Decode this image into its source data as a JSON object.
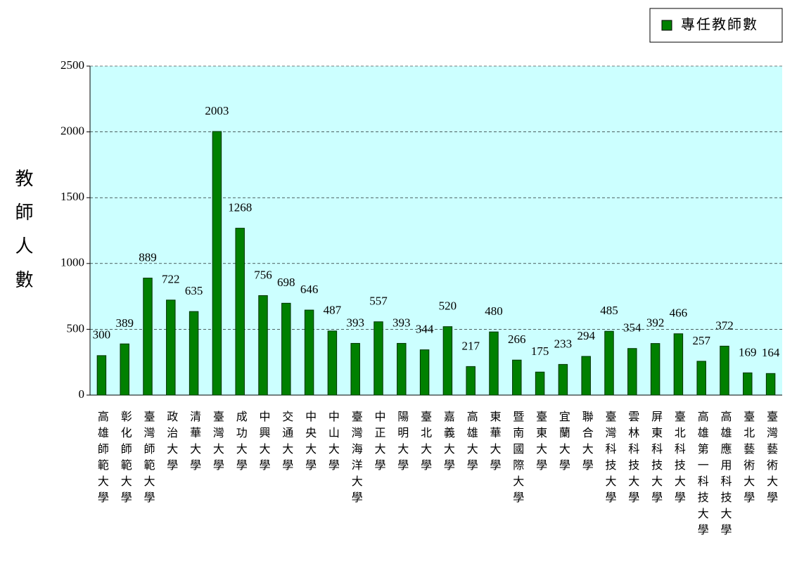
{
  "chart_data": {
    "type": "bar",
    "y_label": "教師人數",
    "categories": [
      "高雄師範大學",
      "彰化師範大學",
      "臺灣師範大學",
      "政治大學",
      "清華大學",
      "臺灣大學",
      "成功大學",
      "中興大學",
      "交通大學",
      "中央大學",
      "中山大學",
      "臺灣海洋大學",
      "中正大學",
      "陽明大學",
      "臺北大學",
      "嘉義大學",
      "高雄大學",
      "東華大學",
      "暨南國際大學",
      "臺東大學",
      "宜蘭大學",
      "聯合大學",
      "臺灣科技大學",
      "雲林科技大學",
      "屏東科技大學",
      "臺北科技大學",
      "高雄第一科技大學",
      "高雄應用科技大學",
      "臺北藝術大學",
      "臺灣藝術大學"
    ],
    "series": [
      {
        "name": "專任教師數",
        "color": "#008000",
        "values": [
          300,
          389,
          889,
          722,
          635,
          2003,
          1268,
          756,
          698,
          646,
          487,
          393,
          557,
          393,
          344,
          520,
          217,
          480,
          266,
          175,
          233,
          294,
          485,
          354,
          392,
          466,
          257,
          372,
          169,
          164
        ]
      }
    ],
    "ylim": [
      0,
      2500
    ],
    "yticks": [
      0,
      500,
      1000,
      1500,
      2000,
      2500
    ],
    "grid": true,
    "legend": "top-right"
  }
}
